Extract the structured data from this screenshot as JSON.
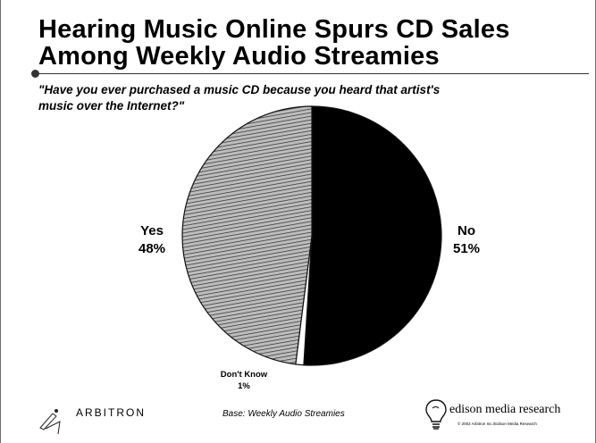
{
  "slide": {
    "title_line1": "Hearing Music Online Spurs CD Sales",
    "title_line2": "Among Weekly Audio Streamies",
    "question_line1": "\"Have you ever purchased a music CD because you heard that artist's",
    "question_line2": "music over the Internet?\"",
    "footer_left": "ARBITRON",
    "footer_base": "Base: Weekly Audio Streamies",
    "footer_right": "edison media research",
    "footer_copyright": "© 2002 Arbitron Inc./Edison Media Research"
  },
  "chart_data": {
    "type": "pie",
    "title": "Hearing Music Online Spurs CD Sales Among Weekly Audio Streamies",
    "slices": [
      {
        "name": "No",
        "value": 51,
        "label": "51%",
        "color": "#000000"
      },
      {
        "name": "Don't Know",
        "value": 1,
        "label": "1%",
        "color": "#ffffff"
      },
      {
        "name": "Yes",
        "value": 48,
        "label": "48%",
        "color": "#a8a8a8"
      }
    ]
  }
}
